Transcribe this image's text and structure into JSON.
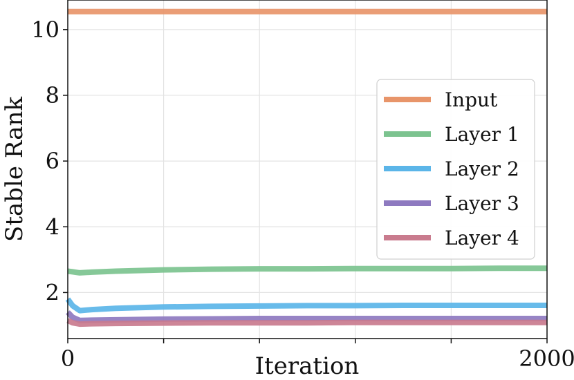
{
  "chart_data": {
    "type": "line",
    "title": "",
    "xlabel": "Iteration",
    "ylabel": "Stable Rank",
    "xlim": [
      0,
      2000
    ],
    "ylim": [
      0.6,
      10.9
    ],
    "x_ticks": [
      0,
      400,
      800,
      1200,
      1600,
      2000
    ],
    "x_tick_labels": [
      "0",
      "",
      "",
      "",
      "",
      "2000"
    ],
    "y_ticks": [
      2,
      4,
      6,
      8,
      10
    ],
    "y_tick_labels": [
      "2",
      "4",
      "6",
      "8",
      "10"
    ],
    "grid": true,
    "legend_position": "center-right",
    "series": [
      {
        "name": "Input",
        "color": "#E8956A",
        "x": [
          0,
          20,
          50,
          100,
          200,
          400,
          600,
          800,
          1000,
          1200,
          1400,
          1600,
          1800,
          2000
        ],
        "y": [
          10.55,
          10.55,
          10.55,
          10.55,
          10.55,
          10.55,
          10.55,
          10.55,
          10.55,
          10.55,
          10.55,
          10.55,
          10.55,
          10.55
        ]
      },
      {
        "name": "Layer 1",
        "color": "#7CC38F",
        "x": [
          0,
          20,
          50,
          100,
          200,
          400,
          600,
          800,
          1000,
          1200,
          1400,
          1600,
          1800,
          2000
        ],
        "y": [
          2.65,
          2.63,
          2.6,
          2.62,
          2.65,
          2.69,
          2.71,
          2.72,
          2.72,
          2.73,
          2.73,
          2.73,
          2.74,
          2.74
        ]
      },
      {
        "name": "Layer 2",
        "color": "#5BB5E8",
        "x": [
          0,
          20,
          50,
          100,
          200,
          400,
          600,
          800,
          1000,
          1200,
          1400,
          1600,
          1800,
          2000
        ],
        "y": [
          1.8,
          1.6,
          1.45,
          1.48,
          1.52,
          1.56,
          1.58,
          1.59,
          1.6,
          1.6,
          1.61,
          1.61,
          1.61,
          1.61
        ]
      },
      {
        "name": "Layer 3",
        "color": "#8E7AC0",
        "x": [
          0,
          20,
          50,
          100,
          200,
          400,
          600,
          800,
          1000,
          1200,
          1400,
          1600,
          1800,
          2000
        ],
        "y": [
          1.4,
          1.25,
          1.15,
          1.16,
          1.17,
          1.19,
          1.2,
          1.21,
          1.21,
          1.21,
          1.21,
          1.21,
          1.21,
          1.21
        ]
      },
      {
        "name": "Layer 4",
        "color": "#C97B8E",
        "x": [
          0,
          20,
          50,
          100,
          200,
          400,
          600,
          800,
          1000,
          1200,
          1400,
          1600,
          1800,
          2000
        ],
        "y": [
          1.15,
          1.08,
          1.04,
          1.05,
          1.06,
          1.07,
          1.08,
          1.08,
          1.08,
          1.09,
          1.09,
          1.09,
          1.09,
          1.09
        ]
      }
    ]
  }
}
